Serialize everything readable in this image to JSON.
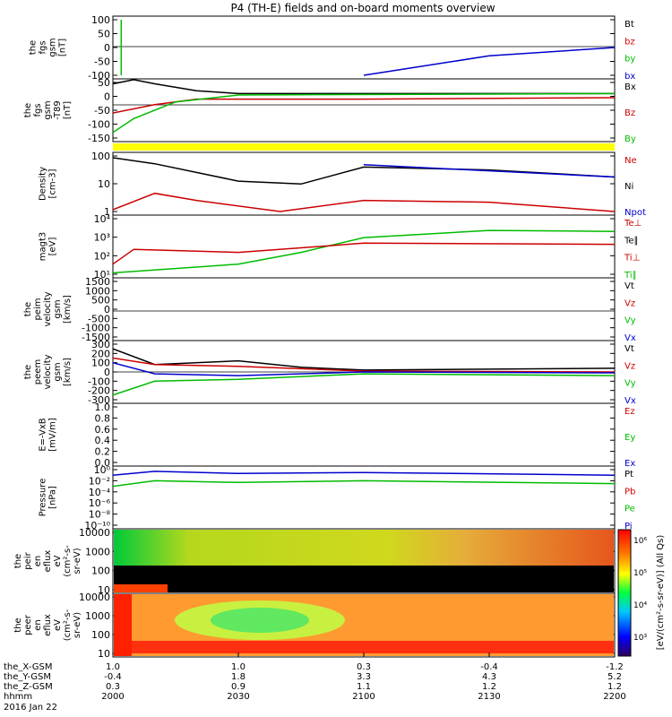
{
  "title": "P4 (TH-E) fields and on-board moments overview",
  "panels": [
    {
      "id": "fgs",
      "ylabel": [
        "the",
        "fgs",
        "gsm",
        "[nT]"
      ],
      "yticks": [
        "100",
        "50",
        "0",
        "-50",
        "-100"
      ],
      "legend": [
        {
          "t": "Bt",
          "c": "#000000"
        },
        {
          "t": "bz",
          "c": "#cc0000"
        },
        {
          "t": "by",
          "c": "#00bb00"
        },
        {
          "t": "bx",
          "c": "#0000cc"
        }
      ]
    },
    {
      "id": "fgs_mean",
      "ylabel": [
        "the",
        "fgs",
        "gsm",
        "-T89",
        "[nT]"
      ],
      "yticks": [
        "50",
        "0",
        "-50",
        "-100",
        "-150"
      ],
      "legend": [
        {
          "t": "Bx",
          "c": "#000000"
        },
        {
          "t": "Bz",
          "c": "#cc0000"
        },
        {
          "t": "By",
          "c": "#00bb00"
        }
      ]
    },
    {
      "id": "density",
      "ylabel": [
        "Density",
        "[cm-3]"
      ],
      "yticks": [
        "100",
        "10",
        "1"
      ],
      "legend": [
        {
          "t": "Ne",
          "c": "#cc0000"
        },
        {
          "t": "Ni",
          "c": "#000000"
        },
        {
          "t": "Npot",
          "c": "#0000cc"
        }
      ]
    },
    {
      "id": "temp",
      "ylabel": [
        "magt3",
        "[eV]"
      ],
      "yticks": [
        "10⁴",
        "10³",
        "10²",
        "10¹"
      ],
      "legend": [
        {
          "t": "Te⊥",
          "c": "#cc0000"
        },
        {
          "t": "Te∥",
          "c": "#000000"
        },
        {
          "t": "Ti⊥",
          "c": "#cc0000"
        },
        {
          "t": "Ti∥",
          "c": "#00bb00"
        }
      ]
    },
    {
      "id": "peim",
      "ylabel": [
        "the",
        "peim",
        "velocity",
        "gsm",
        "[km/s]"
      ],
      "yticks": [
        "1500",
        "1000",
        "500",
        "0",
        "-500",
        "-1000",
        "-1500"
      ],
      "legend": [
        {
          "t": "Vt",
          "c": "#000000"
        },
        {
          "t": "Vz",
          "c": "#cc0000"
        },
        {
          "t": "Vy",
          "c": "#00bb00"
        },
        {
          "t": "Vx",
          "c": "#0000cc"
        }
      ]
    },
    {
      "id": "peem",
      "ylabel": [
        "the",
        "peem",
        "velocity",
        "gsm",
        "[km/s]"
      ],
      "yticks": [
        "300",
        "200",
        "100",
        "0",
        "-100",
        "-200",
        "-300"
      ],
      "legend": [
        {
          "t": "Vt",
          "c": "#000000"
        },
        {
          "t": "Vz",
          "c": "#cc0000"
        },
        {
          "t": "Vy",
          "c": "#00bb00"
        },
        {
          "t": "Vx",
          "c": "#0000cc"
        }
      ]
    },
    {
      "id": "efield",
      "ylabel": [
        "E=-VxB",
        "[mV/m]"
      ],
      "yticks": [
        "1.0",
        "0.8",
        "0.6",
        "0.4",
        "0.2",
        "0.0"
      ],
      "legend": [
        {
          "t": "Ez",
          "c": "#cc0000"
        },
        {
          "t": "Ey",
          "c": "#00bb00"
        },
        {
          "t": "Ex",
          "c": "#0000cc"
        }
      ]
    },
    {
      "id": "pressure",
      "ylabel": [
        "Pressure",
        "[nPa]"
      ],
      "yticks": [
        "10⁰",
        "10⁻²",
        "10⁻⁴",
        "10⁻⁶",
        "10⁻⁸",
        "10⁻¹⁰"
      ],
      "legend": [
        {
          "t": "Pt",
          "c": "#000000"
        },
        {
          "t": "Pb",
          "c": "#cc0000"
        },
        {
          "t": "Pe",
          "c": "#00bb00"
        },
        {
          "t": "Pi",
          "c": "#0000cc"
        }
      ]
    },
    {
      "id": "peir",
      "ylabel": [
        "the",
        "peir",
        "en",
        "eflux",
        "eV",
        "(cm²-s-",
        "sr-eV)"
      ],
      "yticks": [
        "10000",
        "1000",
        "100",
        "10"
      ],
      "legend": []
    },
    {
      "id": "peer",
      "ylabel": [
        "the",
        "peer",
        "en",
        "eflux",
        "eV",
        "(cm²-s-",
        "sr-eV)"
      ],
      "yticks": [
        "10000",
        "1000",
        "100",
        "10"
      ],
      "legend": []
    }
  ],
  "colorbar": {
    "ticks": [
      "10⁶",
      "10⁵",
      "10⁴",
      "10³"
    ],
    "label": "[eV/(cm²-s-sr-eV)] (All Qs)"
  },
  "xaxis": {
    "row_labels": [
      "the_X-GSM",
      "the_Y-GSM",
      "the_Z-GSM",
      "hhmm"
    ],
    "columns": [
      {
        "X": "1.0",
        "Y": "-0.4",
        "Z": "0.3",
        "hhmm": "2000"
      },
      {
        "X": "1.0",
        "Y": "1.8",
        "Z": "0.9",
        "hhmm": "2030"
      },
      {
        "X": "0.3",
        "Y": "3.3",
        "Z": "1.1",
        "hhmm": "2100"
      },
      {
        "X": "-0.4",
        "Y": "4.3",
        "Z": "1.2",
        "hhmm": "2130"
      },
      {
        "X": "-1.2",
        "Y": "5.2",
        "Z": "1.2",
        "hhmm": "2200"
      }
    ],
    "date": "2016 Jan 22"
  },
  "chart_data": {
    "type": "line",
    "title": "P4 (TH-E) fields and on-board moments overview",
    "x_hhmm": [
      "2000",
      "2030",
      "2100",
      "2130",
      "2200"
    ],
    "series": [
      {
        "panel": "fgs",
        "name": "bx",
        "x": [
          "2100",
          "2130",
          "2200"
        ],
        "y": [
          -100,
          -30,
          0
        ]
      },
      {
        "panel": "fgs",
        "name": "by",
        "x": [
          "2002",
          "2002"
        ],
        "y": [
          -100,
          100
        ]
      },
      {
        "panel": "fgs_mean",
        "name": "Bx",
        "x": [
          "2000",
          "2005",
          "2010",
          "2020",
          "2030",
          "2200"
        ],
        "y": [
          45,
          60,
          45,
          20,
          10,
          10
        ]
      },
      {
        "panel": "fgs_mean",
        "name": "Bz",
        "x": [
          "2000",
          "2010",
          "2020",
          "2100",
          "2200"
        ],
        "y": [
          -60,
          -30,
          -10,
          -10,
          -5
        ]
      },
      {
        "panel": "fgs_mean",
        "name": "By",
        "x": [
          "2000",
          "2005",
          "2015",
          "2030",
          "2200"
        ],
        "y": [
          -130,
          -80,
          -20,
          5,
          10
        ]
      },
      {
        "panel": "density",
        "name": "Ni",
        "x": [
          "2000",
          "2010",
          "2030",
          "2045",
          "2100",
          "2130",
          "2200"
        ],
        "y": [
          200,
          110,
          20,
          15,
          80,
          60,
          30
        ]
      },
      {
        "panel": "density",
        "name": "Ne",
        "x": [
          "2000",
          "2010",
          "2020",
          "2040",
          "2100",
          "2130",
          "2200"
        ],
        "y": [
          1.2,
          6,
          3,
          1,
          3,
          2.5,
          1
        ]
      },
      {
        "panel": "density",
        "name": "Npot",
        "x": [
          "2100",
          "2200"
        ],
        "y": [
          100,
          30
        ]
      },
      {
        "panel": "temp",
        "name": "Ti∥",
        "x": [
          "2000",
          "2030",
          "2045",
          "2100",
          "2130",
          "2200"
        ],
        "y": [
          12,
          40,
          200,
          1500,
          4000,
          3500
        ]
      },
      {
        "panel": "temp",
        "name": "Te⊥",
        "x": [
          "2000",
          "2005",
          "2030",
          "2100",
          "2200"
        ],
        "y": [
          40,
          300,
          200,
          700,
          600
        ]
      },
      {
        "panel": "peem",
        "name": "Vt",
        "x": [
          "2000",
          "2010",
          "2030",
          "2045",
          "2100",
          "2200"
        ],
        "y": [
          250,
          80,
          120,
          50,
          20,
          40
        ]
      },
      {
        "panel": "peem",
        "name": "Vz",
        "x": [
          "2000",
          "2010",
          "2030",
          "2100",
          "2200"
        ],
        "y": [
          150,
          80,
          60,
          10,
          0
        ]
      },
      {
        "panel": "peem",
        "name": "Vy",
        "x": [
          "2000",
          "2010",
          "2030",
          "2100",
          "2200"
        ],
        "y": [
          -250,
          -100,
          -80,
          -20,
          -40
        ]
      },
      {
        "panel": "peem",
        "name": "Vx",
        "x": [
          "2000",
          "2010",
          "2030",
          "2100",
          "2200"
        ],
        "y": [
          100,
          -20,
          -40,
          0,
          -10
        ]
      },
      {
        "panel": "pressure",
        "name": "Pi",
        "x": [
          "2000",
          "2010",
          "2030",
          "2100",
          "2200"
        ],
        "y": [
          0.1,
          0.5,
          0.2,
          0.3,
          0.1
        ]
      },
      {
        "panel": "pressure",
        "name": "Pe",
        "x": [
          "2000",
          "2010",
          "2030",
          "2100",
          "2200"
        ],
        "y": [
          0.001,
          0.01,
          0.005,
          0.01,
          0.003
        ]
      }
    ]
  }
}
